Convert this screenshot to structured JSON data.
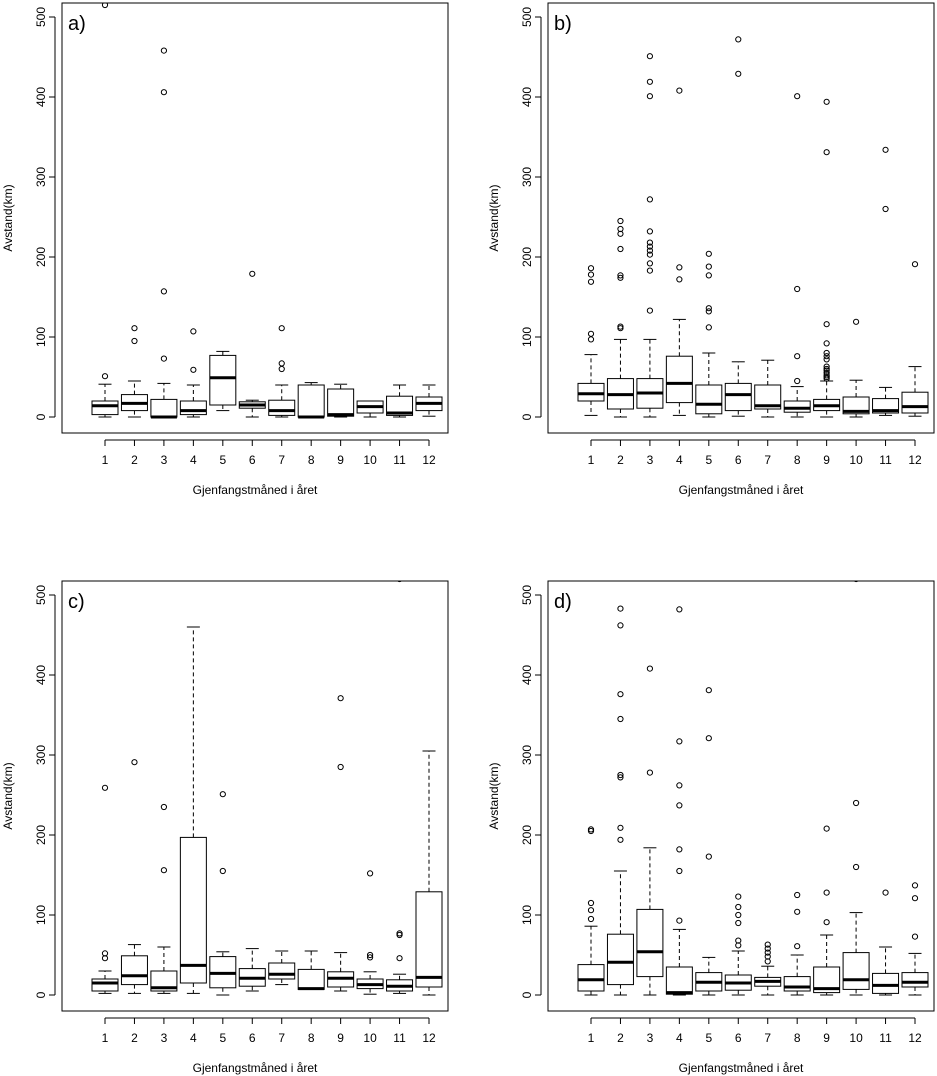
{
  "chart_data": [
    {
      "type": "boxplot",
      "panel_label": "a)",
      "xlabel": "Gjenfangstmåned i året",
      "ylabel": "Avstand(km)",
      "ylim": [
        0,
        500
      ],
      "yticks": [
        0,
        100,
        200,
        300,
        400,
        500
      ],
      "categories": [
        "1",
        "2",
        "3",
        "4",
        "5",
        "6",
        "7",
        "8",
        "9",
        "10",
        "11",
        "12"
      ],
      "boxes": [
        {
          "low": 0,
          "q1": 3,
          "median": 14,
          "q3": 20,
          "high": 41,
          "outliers": [
            51,
            515
          ]
        },
        {
          "low": 0,
          "q1": 8,
          "median": 17,
          "q3": 28,
          "high": 45,
          "outliers": [
            95,
            111
          ]
        },
        {
          "low": 0,
          "q1": 0,
          "median": 0,
          "q3": 22,
          "high": 42,
          "outliers": [
            73,
            157,
            406,
            458
          ]
        },
        {
          "low": 0,
          "q1": 3,
          "median": 8,
          "q3": 20,
          "high": 40,
          "outliers": [
            59,
            107
          ]
        },
        {
          "low": 8,
          "q1": 15,
          "median": 49,
          "q3": 77,
          "high": 82,
          "outliers": []
        },
        {
          "low": 0,
          "q1": 11,
          "median": 15,
          "q3": 19,
          "high": 21,
          "outliers": [
            179
          ]
        },
        {
          "low": 0,
          "q1": 2,
          "median": 8,
          "q3": 21,
          "high": 40,
          "outliers": [
            60,
            67,
            111
          ]
        },
        {
          "low": 0,
          "q1": 0,
          "median": 0,
          "q3": 40,
          "high": 43,
          "outliers": []
        },
        {
          "low": 0,
          "q1": 1,
          "median": 3,
          "q3": 35,
          "high": 41,
          "outliers": []
        },
        {
          "low": 0,
          "q1": 5,
          "median": 13,
          "q3": 20,
          "high": 20,
          "outliers": []
        },
        {
          "low": 0,
          "q1": 2,
          "median": 5,
          "q3": 26,
          "high": 40,
          "outliers": []
        },
        {
          "low": 1,
          "q1": 8,
          "median": 17,
          "q3": 25,
          "high": 40,
          "outliers": []
        }
      ]
    },
    {
      "type": "boxplot",
      "panel_label": "b)",
      "xlabel": "Gjenfangstmåned i året",
      "ylabel": "Avstand(km)",
      "ylim": [
        0,
        500
      ],
      "yticks": [
        0,
        100,
        200,
        300,
        400,
        500
      ],
      "categories": [
        "1",
        "2",
        "3",
        "4",
        "5",
        "6",
        "7",
        "8",
        "9",
        "10",
        "11",
        "12"
      ],
      "boxes": [
        {
          "low": 2,
          "q1": 20,
          "median": 29,
          "q3": 42,
          "high": 78,
          "outliers": [
            97,
            104,
            169,
            178,
            186
          ]
        },
        {
          "low": 0,
          "q1": 10,
          "median": 28,
          "q3": 48,
          "high": 97,
          "outliers": [
            111,
            113,
            174,
            177,
            210,
            229,
            235,
            245
          ]
        },
        {
          "low": 0,
          "q1": 11,
          "median": 30,
          "q3": 48,
          "high": 97,
          "outliers": [
            133,
            183,
            192,
            203,
            208,
            213,
            218,
            232,
            272,
            401,
            419,
            451
          ]
        },
        {
          "low": 2,
          "q1": 18,
          "median": 42,
          "q3": 76,
          "high": 122,
          "outliers": [
            172,
            187,
            408
          ]
        },
        {
          "low": 0,
          "q1": 4,
          "median": 16,
          "q3": 40,
          "high": 80,
          "outliers": [
            112,
            132,
            136,
            177,
            188,
            204
          ]
        },
        {
          "low": 1,
          "q1": 8,
          "median": 28,
          "q3": 42,
          "high": 69,
          "outliers": [
            429,
            472
          ]
        },
        {
          "low": 0,
          "q1": 10,
          "median": 14,
          "q3": 40,
          "high": 71,
          "outliers": []
        },
        {
          "low": 0,
          "q1": 6,
          "median": 11,
          "q3": 20,
          "high": 38,
          "outliers": [
            45,
            76,
            160,
            401
          ]
        },
        {
          "low": 0,
          "q1": 8,
          "median": 14,
          "q3": 22,
          "high": 45,
          "outliers": [
            48,
            50,
            52,
            55,
            58,
            60,
            63,
            72,
            76,
            80,
            92,
            116,
            331,
            394
          ]
        },
        {
          "low": 0,
          "q1": 4,
          "median": 7,
          "q3": 25,
          "high": 46,
          "outliers": [
            119
          ]
        },
        {
          "low": 2,
          "q1": 5,
          "median": 8,
          "q3": 23,
          "high": 37,
          "outliers": [
            260,
            334
          ]
        },
        {
          "low": 1,
          "q1": 5,
          "median": 13,
          "q3": 31,
          "high": 63,
          "outliers": [
            191
          ]
        }
      ]
    },
    {
      "type": "boxplot",
      "panel_label": "c)",
      "xlabel": "Gjenfangstmåned i året",
      "ylabel": "Avstand(km)",
      "ylim": [
        0,
        500
      ],
      "yticks": [
        0,
        100,
        200,
        300,
        400,
        500
      ],
      "categories": [
        "1",
        "2",
        "3",
        "4",
        "5",
        "6",
        "7",
        "8",
        "9",
        "10",
        "11",
        "12"
      ],
      "boxes": [
        {
          "low": 2,
          "q1": 5,
          "median": 15,
          "q3": 20,
          "high": 30,
          "outliers": [
            46,
            52,
            259
          ]
        },
        {
          "low": 2,
          "q1": 13,
          "median": 24,
          "q3": 49,
          "high": 63,
          "outliers": [
            291
          ]
        },
        {
          "low": 2,
          "q1": 5,
          "median": 9,
          "q3": 30,
          "high": 60,
          "outliers": [
            156,
            235
          ]
        },
        {
          "low": 2,
          "q1": 15,
          "median": 37,
          "q3": 197,
          "high": 460,
          "outliers": []
        },
        {
          "low": 0,
          "q1": 9,
          "median": 27,
          "q3": 48,
          "high": 54,
          "outliers": [
            155,
            251
          ]
        },
        {
          "low": 5,
          "q1": 11,
          "median": 21,
          "q3": 33,
          "high": 58,
          "outliers": []
        },
        {
          "low": 13,
          "q1": 20,
          "median": 26,
          "q3": 40,
          "high": 55,
          "outliers": []
        },
        {
          "low": 7,
          "q1": 7,
          "median": 8,
          "q3": 32,
          "high": 55,
          "outliers": []
        },
        {
          "low": 5,
          "q1": 10,
          "median": 21,
          "q3": 29,
          "high": 53,
          "outliers": [
            285,
            371
          ]
        },
        {
          "low": 1,
          "q1": 8,
          "median": 13,
          "q3": 20,
          "high": 29,
          "outliers": [
            47,
            50,
            152
          ]
        },
        {
          "low": 2,
          "q1": 5,
          "median": 11,
          "q3": 19,
          "high": 26,
          "outliers": [
            46,
            75,
            77,
            520
          ]
        },
        {
          "low": 0,
          "q1": 10,
          "median": 22,
          "q3": 129,
          "high": 305,
          "outliers": []
        }
      ]
    },
    {
      "type": "boxplot",
      "panel_label": "d)",
      "xlabel": "Gjenfangstmåned i året",
      "ylabel": "Avstand(km)",
      "ylim": [
        0,
        500
      ],
      "yticks": [
        0,
        100,
        200,
        300,
        400,
        500
      ],
      "categories": [
        "1",
        "2",
        "3",
        "4",
        "5",
        "6",
        "7",
        "8",
        "9",
        "10",
        "11",
        "12"
      ],
      "boxes": [
        {
          "low": 0,
          "q1": 5,
          "median": 19,
          "q3": 38,
          "high": 86,
          "outliers": [
            95,
            106,
            115,
            205,
            207
          ]
        },
        {
          "low": 0,
          "q1": 13,
          "median": 41,
          "q3": 76,
          "high": 155,
          "outliers": [
            194,
            209,
            272,
            275,
            345,
            376,
            462,
            483
          ]
        },
        {
          "low": 0,
          "q1": 23,
          "median": 54,
          "q3": 107,
          "high": 184,
          "outliers": [
            278,
            408
          ]
        },
        {
          "low": 0,
          "q1": 1,
          "median": 3,
          "q3": 35,
          "high": 82,
          "outliers": [
            93,
            155,
            182,
            237,
            262,
            317,
            482
          ]
        },
        {
          "low": 0,
          "q1": 5,
          "median": 16,
          "q3": 28,
          "high": 47,
          "outliers": [
            173,
            321,
            381
          ]
        },
        {
          "low": 0,
          "q1": 6,
          "median": 15,
          "q3": 25,
          "high": 55,
          "outliers": [
            62,
            68,
            90,
            100,
            110,
            123
          ]
        },
        {
          "low": 0,
          "q1": 11,
          "median": 17,
          "q3": 22,
          "high": 36,
          "outliers": [
            42,
            48,
            53,
            58,
            63
          ]
        },
        {
          "low": 0,
          "q1": 5,
          "median": 10,
          "q3": 23,
          "high": 50,
          "outliers": [
            61,
            104,
            125
          ]
        },
        {
          "low": 0,
          "q1": 3,
          "median": 8,
          "q3": 35,
          "high": 75,
          "outliers": [
            91,
            128,
            208
          ]
        },
        {
          "low": 0,
          "q1": 7,
          "median": 19,
          "q3": 53,
          "high": 103,
          "outliers": [
            160,
            240,
            520
          ]
        },
        {
          "low": 0,
          "q1": 2,
          "median": 12,
          "q3": 27,
          "high": 60,
          "outliers": [
            128
          ]
        },
        {
          "low": 0,
          "q1": 10,
          "median": 16,
          "q3": 28,
          "high": 52,
          "outliers": [
            73,
            121,
            137
          ]
        }
      ]
    }
  ]
}
